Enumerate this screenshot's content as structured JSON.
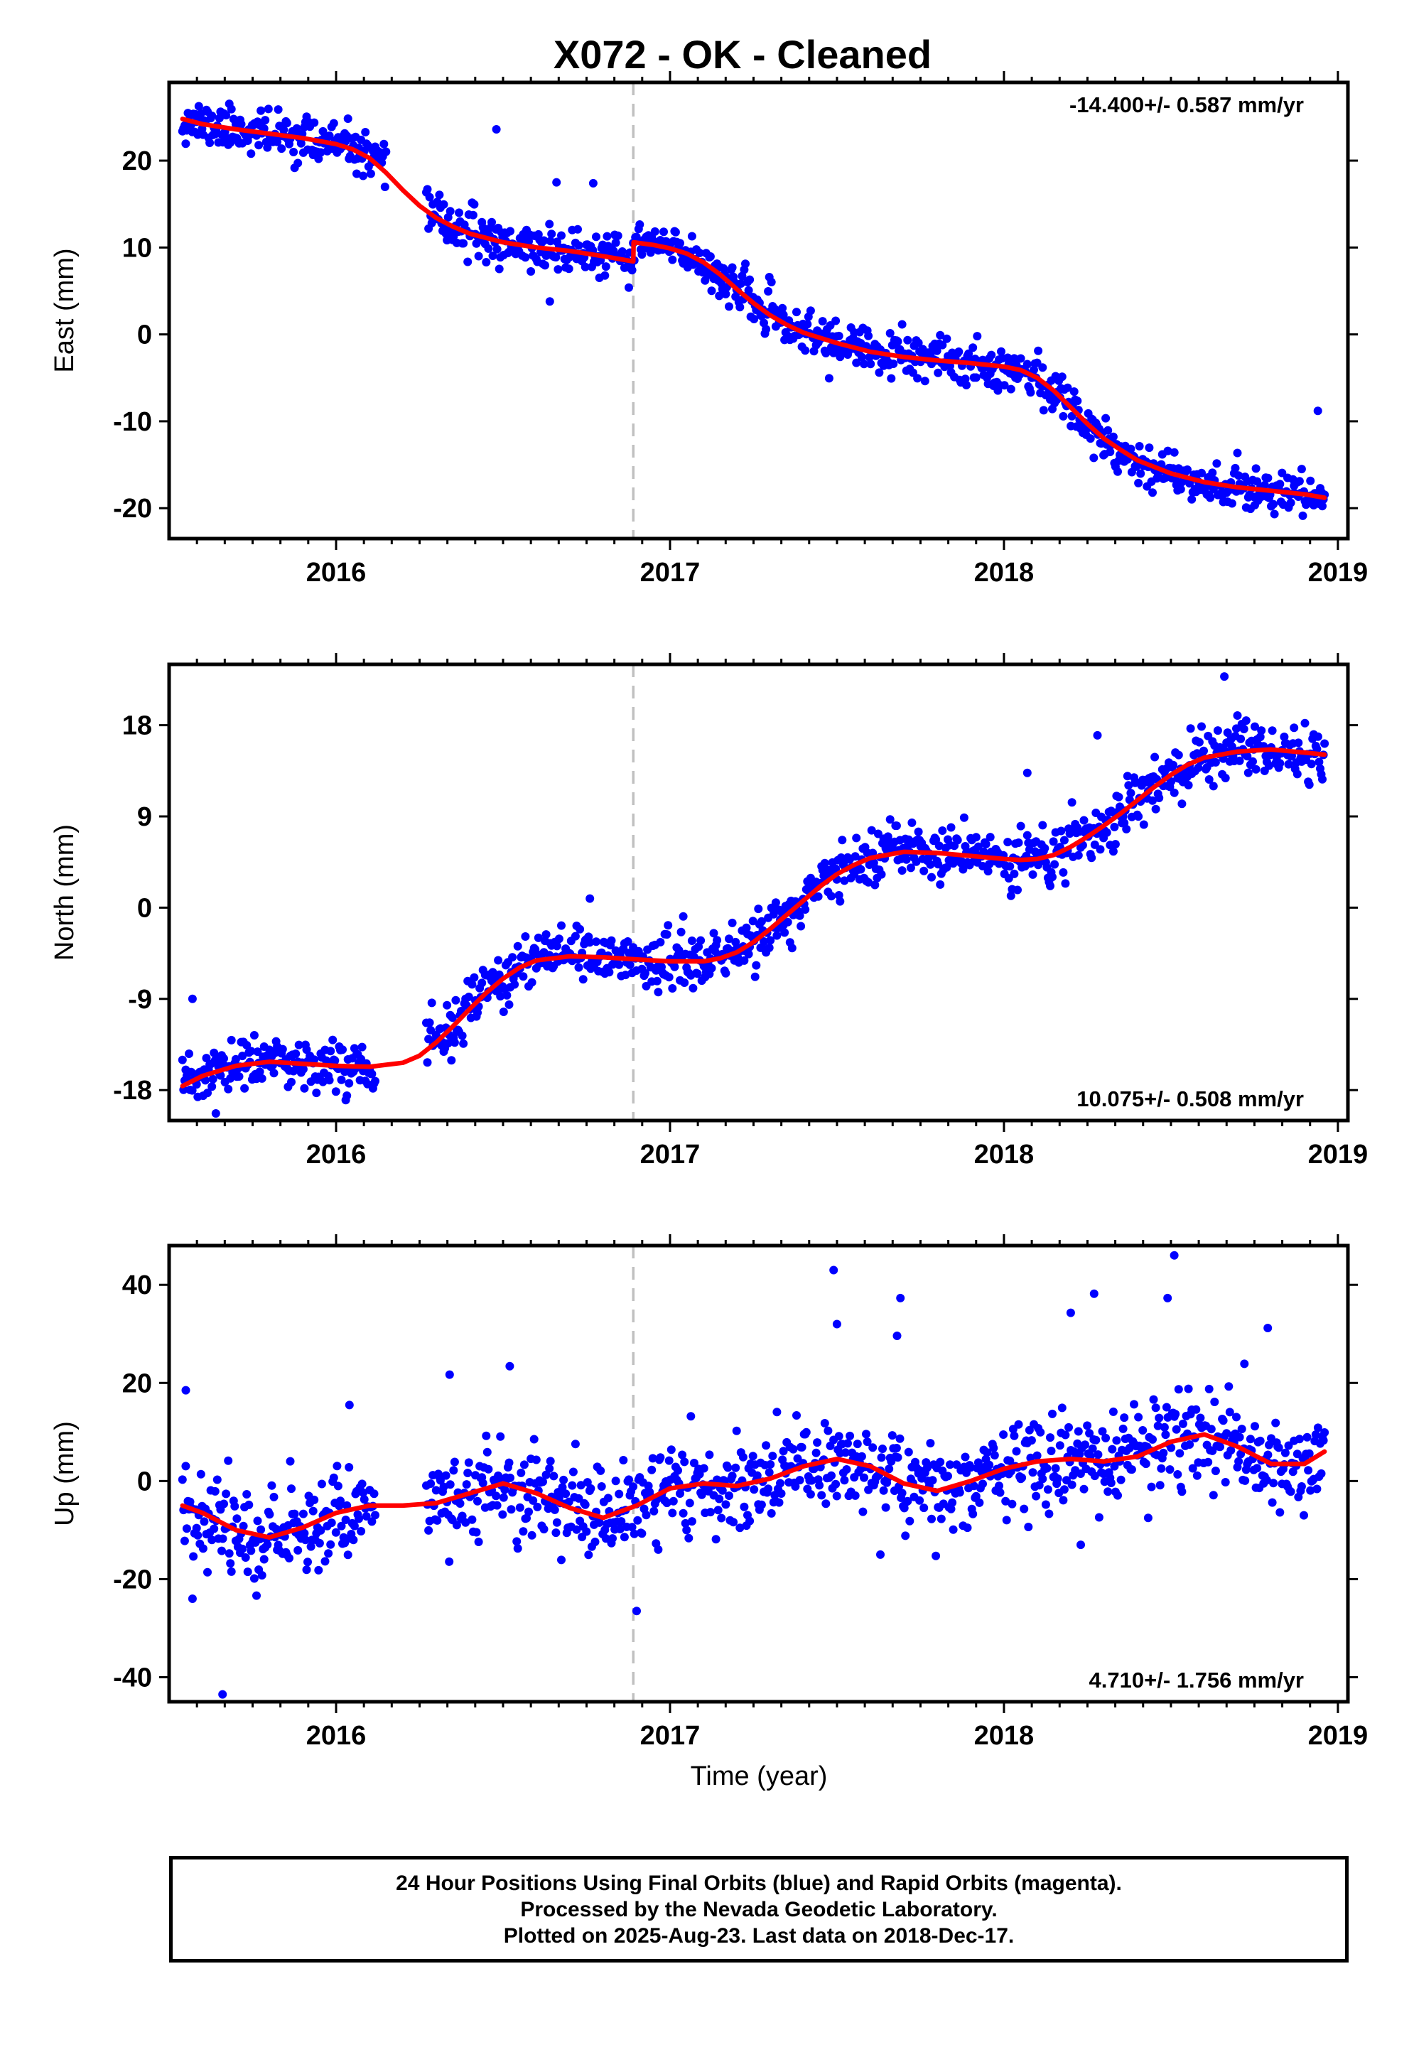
{
  "title": "X072  - OK - Cleaned",
  "xlabel": "Time (year)",
  "footer": {
    "line1": "24 Hour Positions Using Final Orbits (blue) and Rapid Orbits (magenta).",
    "line2": "Processed by the Nevada Geodetic Laboratory.",
    "line3": "Plotted on 2025-Aug-23. Last data on 2018-Dec-17."
  },
  "colors": {
    "data": "#0000ff",
    "model": "#ff0000",
    "event_line": "#c0c0c0",
    "frame": "#000000"
  },
  "chart_data": [
    {
      "type": "scatter",
      "name": "east",
      "ylabel": "East (mm)",
      "rate_label": "-14.400+/- 0.587 mm/yr",
      "rate_position": "top-right",
      "xlim": [
        2015.5,
        2019.03
      ],
      "ylim": [
        -23.5,
        29
      ],
      "yticks": [
        20,
        10,
        0,
        -10,
        -20
      ],
      "xticks": [
        2016,
        2017,
        2018,
        2019
      ],
      "event_line_x": 2016.89,
      "model": {
        "x": [
          2015.54,
          2015.6,
          2015.7,
          2015.8,
          2015.9,
          2016.0,
          2016.05,
          2016.1,
          2016.15,
          2016.2,
          2016.25,
          2016.3,
          2016.35,
          2016.4,
          2016.5,
          2016.6,
          2016.7,
          2016.8,
          2016.89,
          2016.891,
          2016.95,
          2017.0,
          2017.05,
          2017.1,
          2017.15,
          2017.2,
          2017.25,
          2017.3,
          2017.35,
          2017.4,
          2017.5,
          2017.6,
          2017.7,
          2017.8,
          2017.9,
          2018.0,
          2018.05,
          2018.1,
          2018.15,
          2018.2,
          2018.25,
          2018.3,
          2018.35,
          2018.4,
          2018.5,
          2018.6,
          2018.7,
          2018.8,
          2018.9,
          2018.96
        ],
        "y": [
          24.8,
          24.2,
          23.6,
          23.1,
          22.6,
          21.9,
          21.3,
          20.3,
          18.6,
          16.6,
          14.8,
          13.4,
          12.4,
          11.6,
          10.6,
          10.0,
          9.6,
          9.0,
          8.4,
          10.6,
          10.3,
          9.9,
          9.3,
          8.3,
          6.9,
          5.2,
          3.6,
          2.2,
          1.1,
          0.2,
          -1.0,
          -2.0,
          -2.6,
          -3.0,
          -3.3,
          -3.7,
          -4.1,
          -5.0,
          -6.5,
          -8.4,
          -10.3,
          -12.0,
          -13.3,
          -14.5,
          -16.0,
          -17.0,
          -17.6,
          -18.0,
          -18.4,
          -18.8
        ]
      },
      "series": [
        {
          "name": "Final Orbits",
          "source": "random_seeded",
          "seed": 11,
          "count": 1050,
          "noise": 1.25
        }
      ],
      "outliers": [
        [
          2016.48,
          23.6
        ],
        [
          2016.66,
          17.5
        ],
        [
          2016.77,
          17.4
        ],
        [
          2015.58,
          25.2
        ],
        [
          2018.94,
          -8.8
        ],
        [
          2016.64,
          3.8
        ]
      ]
    },
    {
      "type": "scatter",
      "name": "north",
      "ylabel": "North (mm)",
      "rate_label": "10.075+/- 0.508 mm/yr",
      "rate_position": "bottom-right",
      "xlim": [
        2015.5,
        2019.03
      ],
      "ylim": [
        -21,
        24
      ],
      "yticks": [
        18,
        9,
        0,
        -9,
        -18
      ],
      "xticks": [
        2016,
        2017,
        2018,
        2019
      ],
      "event_line_x": 2016.89,
      "model": {
        "x": [
          2015.54,
          2015.6,
          2015.7,
          2015.8,
          2015.9,
          2016.0,
          2016.1,
          2016.2,
          2016.25,
          2016.3,
          2016.35,
          2016.4,
          2016.45,
          2016.5,
          2016.55,
          2016.6,
          2016.7,
          2016.8,
          2016.9,
          2017.0,
          2017.1,
          2017.15,
          2017.2,
          2017.25,
          2017.3,
          2017.35,
          2017.4,
          2017.45,
          2017.5,
          2017.55,
          2017.6,
          2017.7,
          2017.8,
          2017.9,
          2018.0,
          2018.05,
          2018.1,
          2018.15,
          2018.2,
          2018.25,
          2018.3,
          2018.35,
          2018.4,
          2018.45,
          2018.5,
          2018.55,
          2018.6,
          2018.7,
          2018.8,
          2018.9,
          2018.96
        ],
        "y": [
          -17.6,
          -16.6,
          -15.6,
          -15.2,
          -15.4,
          -15.6,
          -15.7,
          -15.3,
          -14.6,
          -13.3,
          -11.7,
          -10.0,
          -8.4,
          -7.0,
          -5.9,
          -5.2,
          -4.8,
          -4.9,
          -5.1,
          -5.3,
          -5.3,
          -5.0,
          -4.4,
          -3.4,
          -2.1,
          -0.7,
          0.7,
          2.1,
          3.3,
          4.2,
          4.9,
          5.5,
          5.4,
          5.1,
          4.8,
          4.7,
          4.8,
          5.2,
          6.0,
          7.0,
          8.1,
          9.3,
          10.6,
          11.9,
          13.1,
          14.1,
          14.8,
          15.4,
          15.6,
          15.3,
          15.1
        ]
      },
      "series": [
        {
          "name": "Final Orbits",
          "source": "random_seeded",
          "seed": 23,
          "count": 1050,
          "noise": 1.3
        }
      ],
      "outliers": [
        [
          2015.57,
          -9.0
        ],
        [
          2016.76,
          0.9
        ],
        [
          2018.28,
          17.0
        ],
        [
          2018.07,
          13.3
        ],
        [
          2018.66,
          22.8
        ],
        [
          2015.64,
          -20.3
        ]
      ]
    },
    {
      "type": "scatter",
      "name": "up",
      "ylabel": "Up (mm)",
      "rate_label": "4.710+/- 1.756 mm/yr",
      "rate_position": "bottom-right",
      "xlim": [
        2015.5,
        2019.03
      ],
      "ylim": [
        -45,
        48
      ],
      "yticks": [
        40,
        20,
        0,
        -20,
        -40
      ],
      "xticks": [
        2016,
        2017,
        2018,
        2019
      ],
      "event_line_x": 2016.89,
      "model": {
        "x": [
          2015.54,
          2015.6,
          2015.7,
          2015.8,
          2015.9,
          2016.0,
          2016.1,
          2016.2,
          2016.3,
          2016.4,
          2016.5,
          2016.6,
          2016.7,
          2016.8,
          2016.9,
          2017.0,
          2017.1,
          2017.2,
          2017.3,
          2017.4,
          2017.5,
          2017.6,
          2017.7,
          2017.8,
          2017.9,
          2018.0,
          2018.1,
          2018.2,
          2018.3,
          2018.4,
          2018.5,
          2018.6,
          2018.7,
          2018.8,
          2018.9,
          2018.96
        ],
        "y": [
          -5.0,
          -6.5,
          -10.0,
          -11.5,
          -9.5,
          -6.5,
          -5.0,
          -5.0,
          -4.5,
          -2.5,
          -0.5,
          -2.5,
          -5.5,
          -7.5,
          -5.0,
          -1.5,
          -0.5,
          -1.0,
          0.5,
          3.0,
          4.5,
          3.0,
          -0.5,
          -2.0,
          0.0,
          2.5,
          4.0,
          4.5,
          4.0,
          5.0,
          8.0,
          9.5,
          7.0,
          3.5,
          3.5,
          6.0
        ]
      },
      "series": [
        {
          "name": "Final Orbits",
          "source": "random_seeded",
          "seed": 37,
          "count": 1050,
          "noise": 4.6
        }
      ],
      "outliers": [
        [
          2015.55,
          18.5
        ],
        [
          2015.57,
          -24.0
        ],
        [
          2015.66,
          -43.5
        ],
        [
          2016.04,
          15.5
        ],
        [
          2016.34,
          21.7
        ],
        [
          2016.52,
          23.4
        ],
        [
          2016.9,
          -26.5
        ],
        [
          2017.49,
          43.0
        ],
        [
          2017.5,
          32.0
        ],
        [
          2017.69,
          37.3
        ],
        [
          2017.68,
          29.6
        ],
        [
          2018.2,
          34.3
        ],
        [
          2018.27,
          38.2
        ],
        [
          2018.51,
          46.0
        ],
        [
          2018.49,
          37.3
        ],
        [
          2018.79,
          31.2
        ],
        [
          2018.72,
          23.9
        ],
        [
          2017.63,
          -15.0
        ],
        [
          2018.23,
          -13.0
        ]
      ]
    }
  ]
}
